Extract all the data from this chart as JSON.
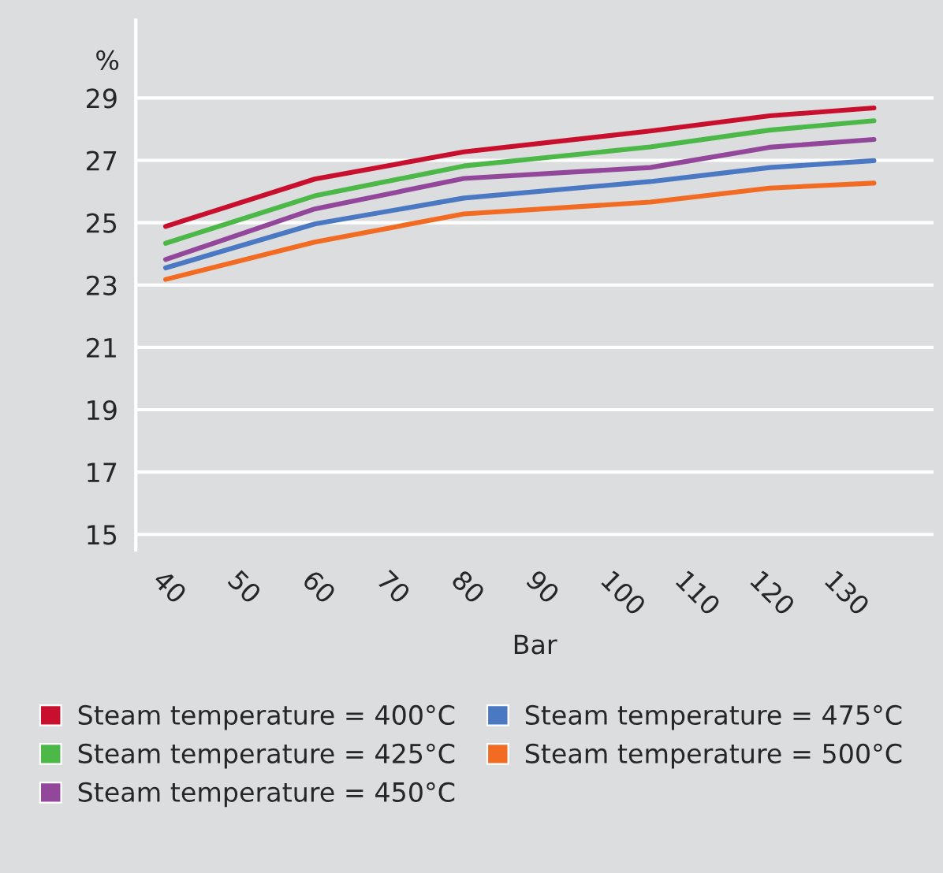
{
  "chart_data": {
    "type": "line",
    "xlabel": "Bar",
    "ylabel": "%",
    "x": [
      40,
      60,
      80,
      105,
      121,
      135
    ],
    "series": [
      {
        "name": "Steam temperature = 400°C",
        "color": "#c8102e",
        "values": [
          24.88,
          26.4,
          27.27,
          27.94,
          28.43,
          28.68
        ]
      },
      {
        "name": "Steam temperature = 425°C",
        "color": "#4cb848",
        "values": [
          24.34,
          25.86,
          26.82,
          27.43,
          27.97,
          28.27
        ]
      },
      {
        "name": "Steam temperature = 450°C",
        "color": "#93479b",
        "values": [
          23.82,
          25.44,
          26.42,
          26.77,
          27.42,
          27.67
        ]
      },
      {
        "name": "Steam temperature = 475°C",
        "color": "#4a78c2",
        "values": [
          23.55,
          24.96,
          25.79,
          26.32,
          26.77,
          26.99
        ]
      },
      {
        "name": "Steam temperature = 500°C",
        "color": "#f26b23",
        "values": [
          23.18,
          24.38,
          25.28,
          25.66,
          26.11,
          26.27
        ]
      }
    ],
    "xlim": [
      36,
      143
    ],
    "xticks": [
      40,
      50,
      60,
      70,
      80,
      90,
      100,
      110,
      120,
      130
    ],
    "ylim": [
      14.5,
      31.5
    ],
    "yticks": [
      15,
      17,
      19,
      21,
      23,
      25,
      27,
      29
    ],
    "grid": "y",
    "legend": "bottom",
    "marker": "none",
    "line_style": "solid"
  }
}
